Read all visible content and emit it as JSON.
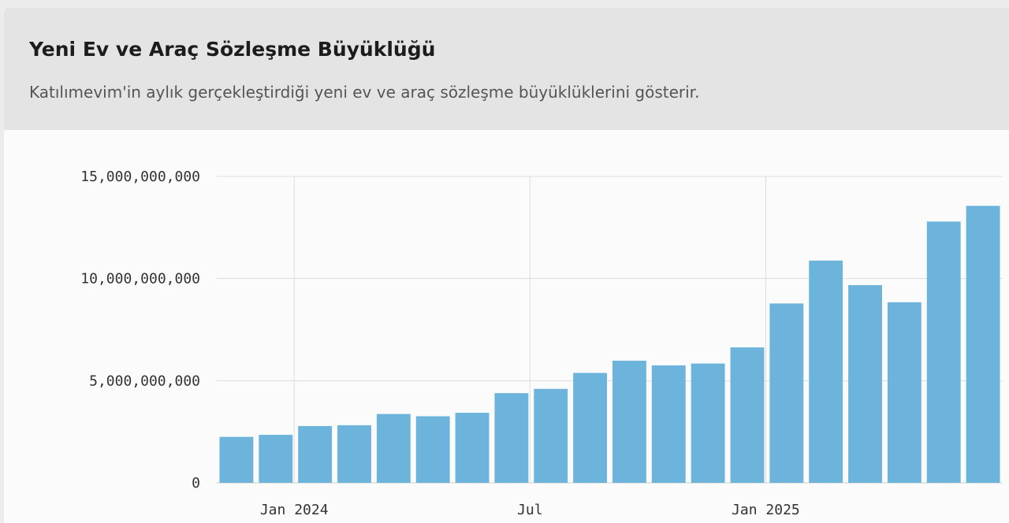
{
  "header": {
    "title": "Yeni Ev ve Araç Sözleşme Büyüklüğü",
    "subtitle": "Katılımevim'in aylık gerçekleştirdiği yeni ev ve araç sözleşme büyüklüklerini gösterir."
  },
  "colors": {
    "bar": "#6cb4dc",
    "grid": "#dddddd",
    "header_bg": "#e4e4e4",
    "panel_bg": "#fbfbfb"
  },
  "chart_data": {
    "type": "bar",
    "categories": [
      "2023-11",
      "2023-12",
      "2024-01",
      "2024-02",
      "2024-03",
      "2024-04",
      "2024-05",
      "2024-06",
      "2024-07",
      "2024-08",
      "2024-09",
      "2024-10",
      "2024-11",
      "2024-12",
      "2025-01",
      "2025-02",
      "2025-03",
      "2025-04",
      "2025-05",
      "2025-06"
    ],
    "values": [
      2250000000,
      2350000000,
      2780000000,
      2820000000,
      3370000000,
      3260000000,
      3430000000,
      4390000000,
      4600000000,
      5380000000,
      5980000000,
      5750000000,
      5840000000,
      6630000000,
      8780000000,
      10880000000,
      9680000000,
      8840000000,
      12790000000,
      13560000000
    ],
    "ylim": [
      0,
      15000000000
    ],
    "y_ticks": [
      {
        "value": 0,
        "label": "0"
      },
      {
        "value": 5000000000,
        "label": "5,000,000,000"
      },
      {
        "value": 10000000000,
        "label": "10,000,000,000"
      },
      {
        "value": 15000000000,
        "label": "15,000,000,000"
      }
    ],
    "x_ticks": [
      {
        "at": "2024-01",
        "label": "Jan 2024"
      },
      {
        "at": "2024-07",
        "label": "Jul"
      },
      {
        "at": "2025-01",
        "label": "Jan 2025"
      }
    ],
    "grid": true,
    "xlabel": "",
    "ylabel": ""
  }
}
